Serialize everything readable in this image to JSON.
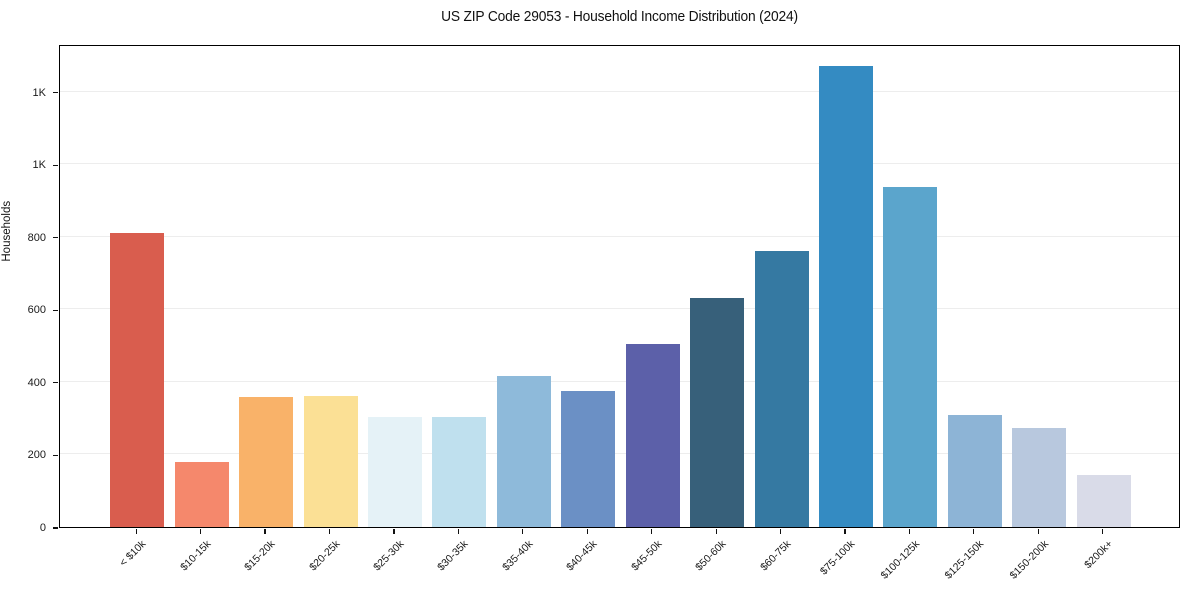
{
  "chart_data": {
    "type": "bar",
    "title": "US ZIP Code 29053 - Household Income Distribution (2024)",
    "xlabel": "",
    "ylabel": "Households",
    "categories": [
      "< $10k",
      "$10-15k",
      "$15-20k",
      "$20-25k",
      "$25-30k",
      "$30-35k",
      "$35-40k",
      "$40-45k",
      "$45-50k",
      "$50-60k",
      "$60-75k",
      "$75-100k",
      "$100-125k",
      "$125-150k",
      "$150-200k",
      "$200k+"
    ],
    "values": [
      810,
      178,
      357,
      361,
      302,
      302,
      416,
      374,
      505,
      631,
      760,
      1271,
      938,
      309,
      272,
      143
    ],
    "bar_colors": [
      "#d95d4e",
      "#f5886c",
      "#f9b269",
      "#fbe095",
      "#e5f2f7",
      "#bfe0ee",
      "#8ebada",
      "#6b90c5",
      "#5c60a9",
      "#37607a",
      "#3579a2",
      "#348bc2",
      "#5ba5cc",
      "#8db4d6",
      "#b8c8de",
      "#d9dbe8"
    ],
    "ylim": [
      0,
      1331
    ],
    "yticks": [
      {
        "value": 0,
        "label": "0"
      },
      {
        "value": 200,
        "label": "200"
      },
      {
        "value": 400,
        "label": "400"
      },
      {
        "value": 600,
        "label": "600"
      },
      {
        "value": 800,
        "label": "800"
      },
      {
        "value": 1000,
        "label": "1K"
      },
      {
        "value": 1200,
        "label": "1K"
      }
    ],
    "grid": "horizontal",
    "legend": "none",
    "background_color": "#ffffff",
    "spine_color": "#000000",
    "gridline_color": "#ededed"
  }
}
